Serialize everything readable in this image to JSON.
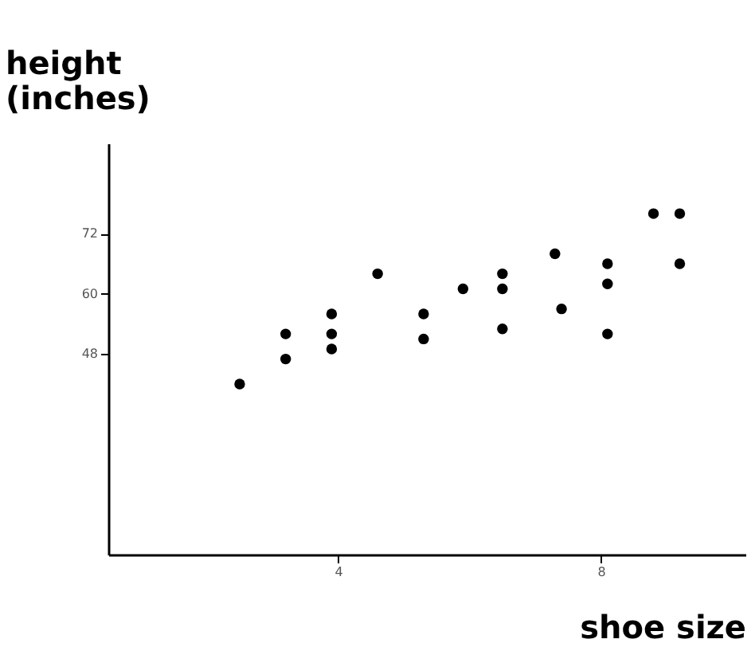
{
  "chart_data": {
    "type": "scatter",
    "xlabel": "shoe size",
    "ylabel": "height (inches)",
    "x": [
      2.5,
      3.2,
      3.2,
      3.9,
      3.9,
      3.9,
      4.6,
      5.3,
      5.3,
      5.9,
      6.5,
      6.5,
      6.5,
      7.3,
      7.4,
      8.1,
      8.1,
      8.1,
      8.8,
      9.2,
      9.2
    ],
    "values": [
      42,
      52,
      47,
      56,
      52,
      49,
      64,
      56,
      51,
      61,
      64,
      61,
      53,
      68,
      57,
      66,
      62,
      52,
      76,
      76,
      66
    ],
    "color": "#000000",
    "marker": "circle",
    "xlim": [
      0.5,
      10.2
    ],
    "xticks": [
      4,
      8
    ],
    "ylim": [
      8,
      90
    ],
    "yticks": [
      48,
      60,
      72
    ],
    "grid": false
  }
}
